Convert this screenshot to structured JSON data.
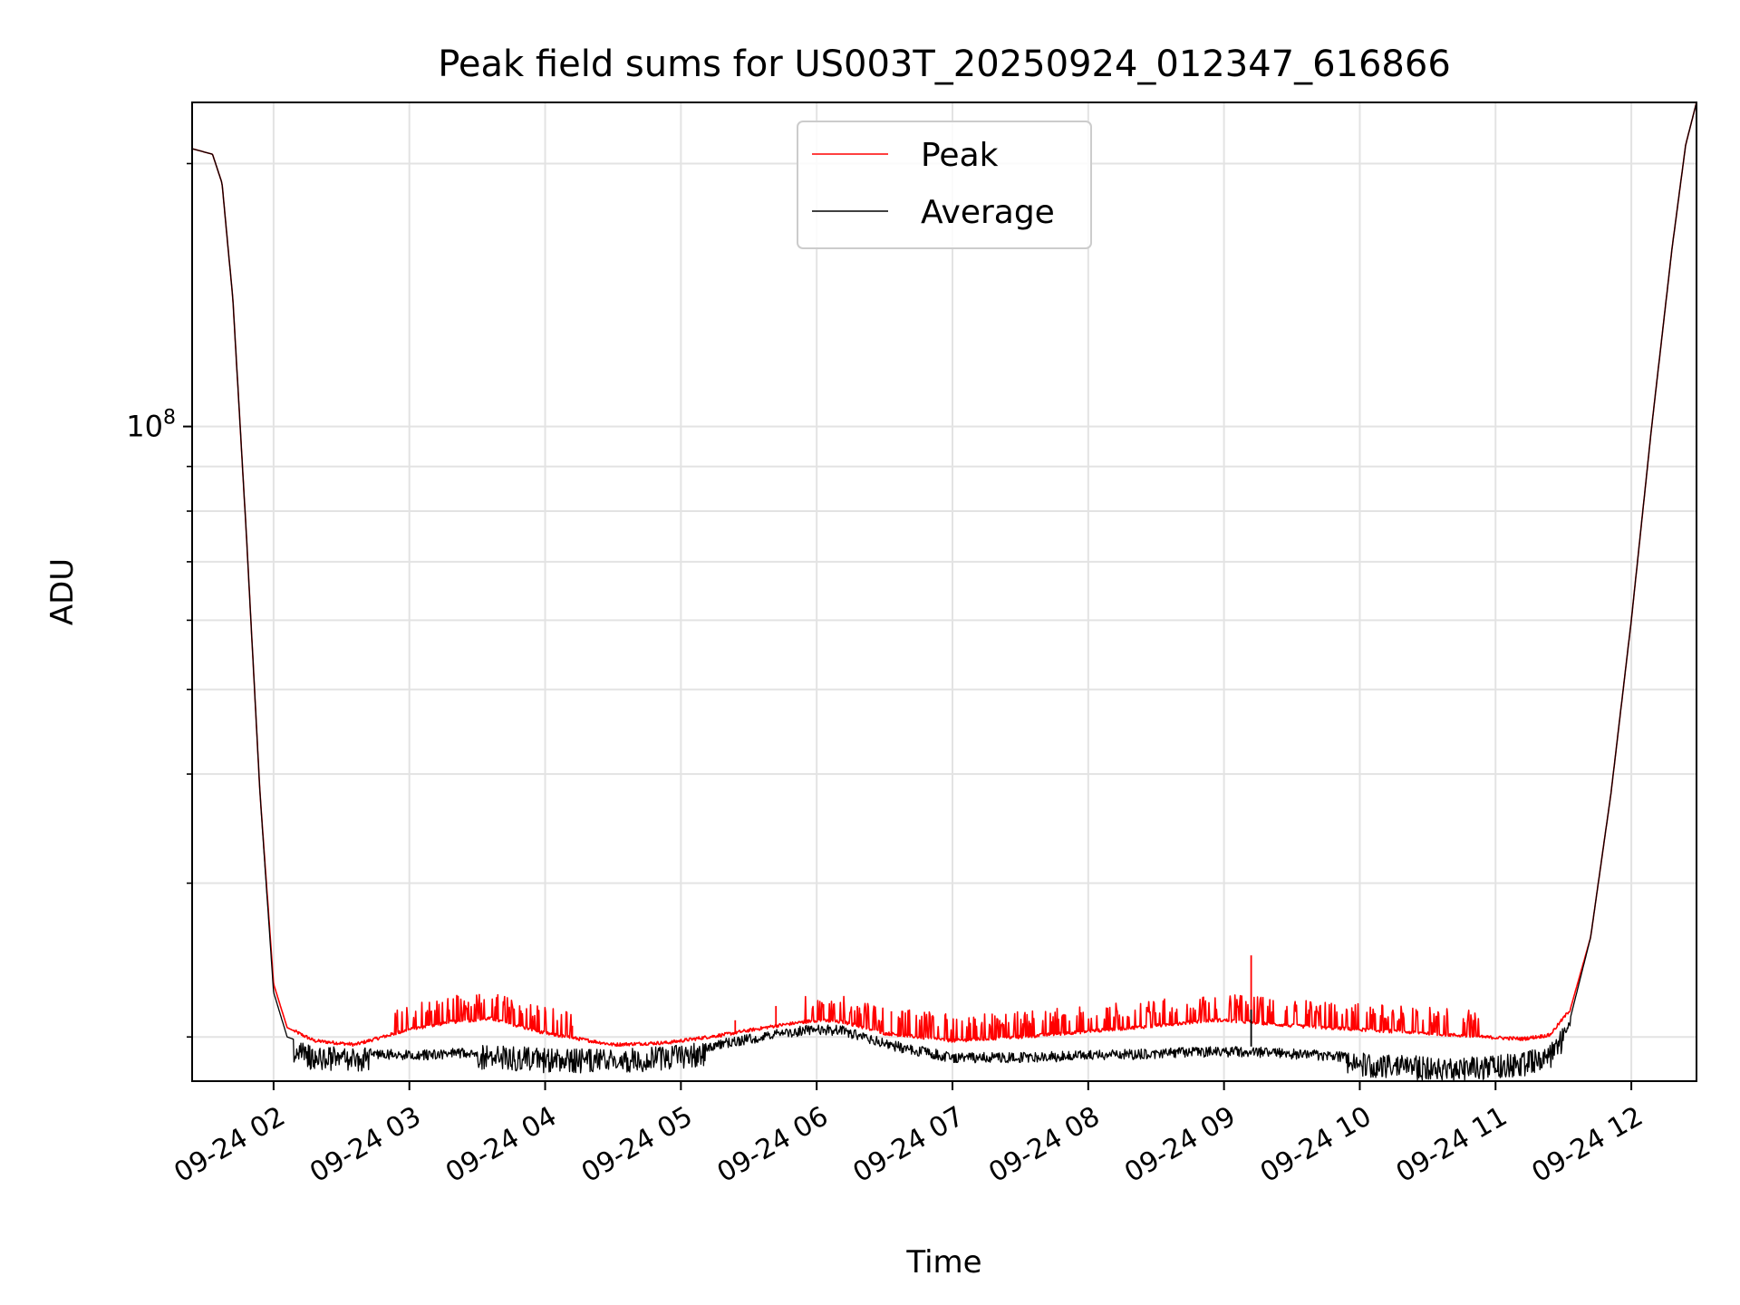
{
  "chart_data": {
    "type": "line",
    "title": "Peak field sums for US003T_20250924_012347_616866",
    "xlabel": "Time",
    "ylabel": "ADU",
    "yscale": "log",
    "grid": true,
    "legend_position": "upper-center",
    "xlim_hours": [
      1.4,
      12.48
    ],
    "ylim": [
      17800000,
      235000000
    ],
    "x_ticks": [
      {
        "hour": 2,
        "label": "09-24 02"
      },
      {
        "hour": 3,
        "label": "09-24 03"
      },
      {
        "hour": 4,
        "label": "09-24 04"
      },
      {
        "hour": 5,
        "label": "09-24 05"
      },
      {
        "hour": 6,
        "label": "09-24 06"
      },
      {
        "hour": 7,
        "label": "09-24 07"
      },
      {
        "hour": 8,
        "label": "09-24 08"
      },
      {
        "hour": 9,
        "label": "09-24 09"
      },
      {
        "hour": 10,
        "label": "09-24 10"
      },
      {
        "hour": 11,
        "label": "09-24 11"
      },
      {
        "hour": 12,
        "label": "09-24 12"
      }
    ],
    "y_major_ticks": [
      {
        "value": 100000000,
        "base": "10",
        "exp": "8"
      }
    ],
    "y_minor_ticks": [
      20000000,
      30000000,
      40000000,
      50000000,
      60000000,
      70000000,
      80000000,
      90000000,
      200000000
    ],
    "series": [
      {
        "name": "Peak",
        "color": "#ff0000",
        "x_hours": [
          1.4,
          1.55,
          1.62,
          1.7,
          1.8,
          1.9,
          2.0,
          2.1,
          2.3,
          2.6,
          3.0,
          3.3,
          3.6,
          4.0,
          4.5,
          4.9,
          5.3,
          5.7,
          6.0,
          6.2,
          6.5,
          7.0,
          7.5,
          8.0,
          8.5,
          8.9,
          9.0,
          9.2,
          9.5,
          10.0,
          10.5,
          10.9,
          11.2,
          11.4,
          11.55,
          11.7,
          11.85,
          12.0,
          12.15,
          12.3,
          12.4,
          12.48
        ],
        "values": [
          208000000,
          205000000,
          190000000,
          140000000,
          75000000,
          38000000,
          23000000,
          20500000,
          19800000,
          19600000,
          20400000,
          20800000,
          21000000,
          20200000,
          19600000,
          19700000,
          20100000,
          20600000,
          20900000,
          20800000,
          20200000,
          19800000,
          20000000,
          20300000,
          20600000,
          20900000,
          20900000,
          20800000,
          20600000,
          20400000,
          20200000,
          20000000,
          19900000,
          20100000,
          21500000,
          26000000,
          38000000,
          60000000,
          100000000,
          160000000,
          210000000,
          235000000
        ],
        "spikes": [
          {
            "hour": 9.2,
            "value": 24800000
          },
          {
            "hour": 5.7,
            "value": 21700000
          },
          {
            "hour": 6.05,
            "value": 21800000
          },
          {
            "hour": 6.3,
            "value": 21700000
          },
          {
            "hour": 6.55,
            "value": 21400000
          },
          {
            "hour": 4.2,
            "value": 20600000
          },
          {
            "hour": 5.4,
            "value": 20900000
          }
        ]
      },
      {
        "name": "Average",
        "color": "#000000",
        "x_hours": [
          1.4,
          1.55,
          1.62,
          1.7,
          1.8,
          1.9,
          2.0,
          2.1,
          2.3,
          2.6,
          3.0,
          3.3,
          3.6,
          4.0,
          4.5,
          4.9,
          5.3,
          5.7,
          6.0,
          6.2,
          6.5,
          7.0,
          7.5,
          8.0,
          8.5,
          8.9,
          9.0,
          9.2,
          9.5,
          10.0,
          10.5,
          10.9,
          11.2,
          11.4,
          11.55,
          11.7,
          11.85,
          12.0,
          12.15,
          12.3,
          12.4,
          12.48
        ],
        "values": [
          208000000,
          205000000,
          190000000,
          140000000,
          75000000,
          38000000,
          22500000,
          20000000,
          19500000,
          19500000,
          19300000,
          19400000,
          19600000,
          19400000,
          19400000,
          19500000,
          19900000,
          20400000,
          20700000,
          20600000,
          19900000,
          19200000,
          19200000,
          19300000,
          19400000,
          19500000,
          19500000,
          19500000,
          19400000,
          19200000,
          19000000,
          19000000,
          19200000,
          19600000,
          21000000,
          26000000,
          38000000,
          60000000,
          100000000,
          160000000,
          210000000,
          235000000
        ],
        "spikes": [
          {
            "hour": 9.2,
            "value": 21500000
          }
        ]
      }
    ]
  }
}
